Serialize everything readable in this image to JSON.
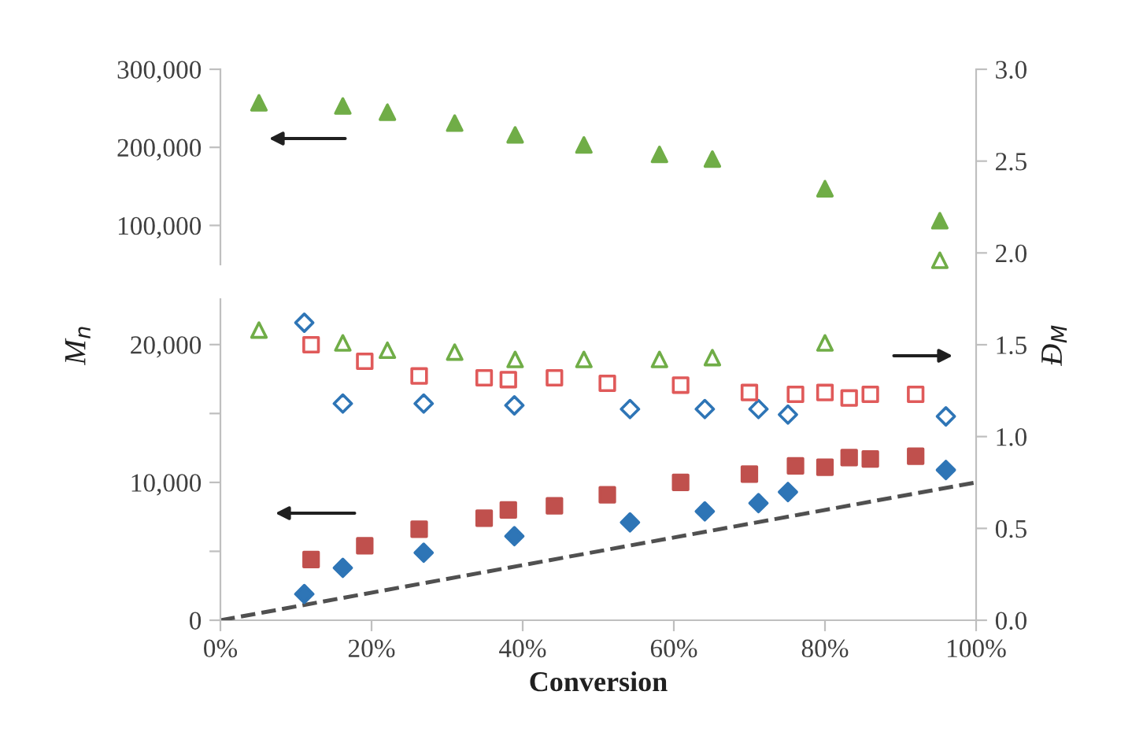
{
  "chart_data": [
    {
      "type": "scatter",
      "xlim": [
        0,
        100
      ],
      "ylim": [
        50000,
        300000
      ],
      "yticks": [
        {
          "value": 100000,
          "label": "100,000"
        },
        {
          "value": 200000,
          "label": "200,000"
        },
        {
          "value": 300000,
          "label": "300,000"
        }
      ],
      "tick_labels": "y",
      "marker": "triangle",
      "x": [
        5.1,
        16.2,
        22.1,
        31.0,
        39.0,
        48.1,
        58.1,
        65.1,
        80.0,
        95.2
      ],
      "series": [
        {
          "color": "#70ad47",
          "values": [
            257000,
            253000,
            245000,
            231000,
            216000,
            203000,
            191000,
            185000,
            147000,
            106000
          ]
        }
      ]
    },
    {
      "type": "scatter",
      "xlim": [
        0,
        100
      ],
      "ylim": [
        0,
        23300
      ],
      "yticks": [
        0,
        {
          "value": 5000,
          "label": null
        },
        {
          "value": 10000,
          "label": "10,000"
        },
        {
          "value": 15000,
          "label": null
        },
        {
          "value": 20000,
          "label": "20,000"
        }
      ],
      "tick_labels": "y",
      "ylabel": "M$_{n}$",
      "series": [
        {
          "color": "#c0504d",
          "marker": "square",
          "x": [
            12.0,
            19.1,
            26.3,
            34.9,
            38.1,
            44.2,
            51.2,
            60.9,
            70.0,
            76.1,
            80.0,
            83.2,
            86.0,
            92.0
          ],
          "values": [
            4400,
            5400,
            6600,
            7400,
            8000,
            8300,
            9100,
            10000,
            10600,
            11200,
            11100,
            11800,
            11700,
            11900
          ]
        },
        {
          "color": "#2e75b6",
          "marker": "diamond",
          "x": [
            11.1,
            16.2,
            26.9,
            38.9,
            54.2,
            64.1,
            71.2,
            75.1,
            96.0
          ],
          "values": [
            1900,
            3800,
            4900,
            6100,
            7100,
            7900,
            8500,
            9300,
            10900
          ]
        },
        {
          "type": "line",
          "color": "#505050",
          "line_style": "dashed",
          "marker": "none",
          "x": [
            0,
            100
          ],
          "values": [
            0,
            10000
          ]
        }
      ]
    },
    {
      "type": "scatter",
      "xlim": [
        0,
        100
      ],
      "xticks": [
        {
          "value": 0,
          "label": "0%"
        },
        {
          "value": 20,
          "label": "20%"
        },
        {
          "value": 40,
          "label": "40%"
        },
        {
          "value": 60,
          "label": "60%"
        },
        {
          "value": 80,
          "label": "80%"
        },
        {
          "value": 100,
          "label": "100%"
        }
      ],
      "xlabel": "Conversion",
      "y2lim": [
        0,
        3
      ],
      "y2ticks": [
        {
          "value": 0,
          "label": "0.0"
        },
        {
          "value": 0.5,
          "label": "0.5"
        },
        {
          "value": 1,
          "label": "1.0"
        },
        {
          "value": 1.5,
          "label": "1.5"
        },
        {
          "value": 2,
          "label": "2.0"
        },
        {
          "value": 2.5,
          "label": "2.5"
        },
        {
          "value": 3,
          "label": "3.0"
        }
      ],
      "y2label": "Đ$_{M}$",
      "series": [
        {
          "axis": "y2",
          "color": "#70ad47",
          "marker": "triangle",
          "x": [
            5.1,
            16.2,
            22.1,
            31.0,
            39.0,
            48.1,
            58.1,
            65.1,
            80.0,
            95.2
          ],
          "values": [
            1.58,
            1.51,
            1.47,
            1.46,
            1.42,
            1.42,
            1.42,
            1.43,
            1.51,
            1.96
          ]
        },
        {
          "axis": "y2",
          "color": "#2e75b6",
          "marker": "diamond",
          "x": [
            11.1,
            16.2,
            26.9,
            38.9,
            54.2,
            64.1,
            71.2,
            75.1,
            96.0
          ],
          "values": [
            1.62,
            1.18,
            1.18,
            1.17,
            1.15,
            1.15,
            1.15,
            1.12,
            1.11
          ]
        },
        {
          "axis": "y2",
          "color": "#e05a5a",
          "marker": "square",
          "x": [
            12.0,
            19.1,
            26.3,
            34.9,
            38.1,
            44.2,
            51.2,
            60.9,
            70.0,
            76.1,
            80.0,
            83.2,
            86.0,
            92.0
          ],
          "values": [
            1.5,
            1.41,
            1.33,
            1.32,
            1.31,
            1.32,
            1.29,
            1.28,
            1.24,
            1.23,
            1.24,
            1.21,
            1.23,
            1.23
          ]
        }
      ]
    }
  ]
}
